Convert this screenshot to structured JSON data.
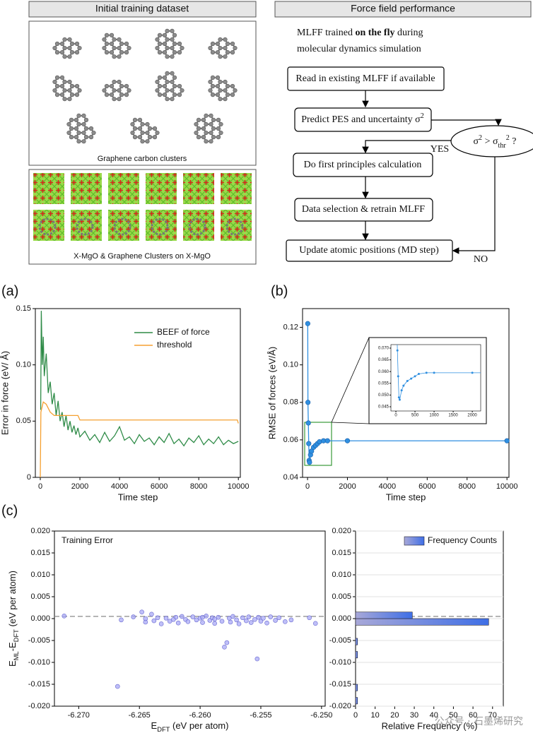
{
  "dataset": {
    "title": "Initial training dataset",
    "graphene_caption": "Graphene carbon clusters",
    "mgo_caption": "X-MgO & Graphene Clusters on X-MgO"
  },
  "flow": {
    "title": "Force field performance",
    "intro": [
      {
        "text": "MLFF trained "
      },
      {
        "text": "on the fly",
        "weight": "bold"
      },
      {
        "text": " during"
      }
    ],
    "intro2": "molecular dynamics simulation",
    "read": "Read in existing MLFF if available",
    "predict": [
      {
        "text": "Predict PES and uncertainty σ"
      },
      {
        "text": "2",
        "shift": "super"
      }
    ],
    "decision": [
      {
        "text": "σ"
      },
      {
        "text": "2",
        "shift": "super"
      },
      {
        "text": " > σ"
      },
      {
        "text": "thr",
        "shift": "sub"
      },
      {
        "text": "2",
        "shift": "super"
      },
      {
        "text": " ?"
      }
    ],
    "yes": "YES",
    "first_principles": "Do first principles calculation",
    "retrain": "Data selection & retrain MLFF",
    "update": "Update atomic positions (MD step)",
    "no": "NO"
  },
  "chart_data": [
    {
      "type": "line",
      "panel_label": "(a)",
      "xlabel": "Time step",
      "ylabel": "Error in force (eV/ Å)",
      "xlim": [
        -250,
        10100
      ],
      "ylim": [
        0,
        0.15
      ],
      "xticks": [
        0,
        2000,
        4000,
        6000,
        8000,
        10000
      ],
      "yticks": [
        0,
        0.05,
        {
          "value": 0.1,
          "label": "0.10"
        },
        0.15
      ],
      "legend": "upper right",
      "series": [
        {
          "name": "BEEF of force",
          "color": "#2e8b47",
          "x": [
            20,
            50,
            100,
            150,
            200,
            300,
            400,
            500,
            600,
            700,
            800,
            900,
            1000,
            1100,
            1200,
            1300,
            1400,
            1500,
            1600,
            1700,
            1800,
            1900,
            2000,
            2250,
            2500,
            2750,
            3000,
            3250,
            3500,
            3750,
            4000,
            4250,
            4500,
            4750,
            5000,
            5250,
            5500,
            5750,
            6000,
            6250,
            6500,
            6750,
            7000,
            7250,
            7500,
            7750,
            8000,
            8250,
            8500,
            8750,
            9000,
            9250,
            9500,
            9750,
            10000
          ],
          "values": [
            0.06,
            0.148,
            0.1,
            0.125,
            0.09,
            0.11,
            0.075,
            0.085,
            0.065,
            0.075,
            0.055,
            0.068,
            0.05,
            0.058,
            0.045,
            0.055,
            0.042,
            0.05,
            0.04,
            0.046,
            0.038,
            0.044,
            0.036,
            0.041,
            0.033,
            0.038,
            0.031,
            0.04,
            0.032,
            0.037,
            0.045,
            0.033,
            0.036,
            0.03,
            0.038,
            0.032,
            0.035,
            0.029,
            0.036,
            0.031,
            0.039,
            0.03,
            0.034,
            0.028,
            0.035,
            0.031,
            0.037,
            0.029,
            0.034,
            0.03,
            0.036,
            0.029,
            0.033,
            0.03,
            0.032
          ]
        },
        {
          "name": "threshold",
          "color": "#f5a030",
          "x": [
            0,
            30,
            150,
            300,
            500,
            700,
            1900,
            2000,
            9950,
            10000
          ],
          "values": [
            0,
            0.058,
            0.067,
            0.065,
            0.058,
            0.055,
            0.055,
            0.051,
            0.051,
            0.048
          ]
        }
      ]
    },
    {
      "type": "line",
      "markers": true,
      "panel_label": "(b)",
      "xlabel": "Time step",
      "ylabel": "RMSE of forces (eV/Å)",
      "xlim": [
        -250,
        10100
      ],
      "ylim": [
        0.04,
        0.13
      ],
      "xticks": [
        0,
        2000,
        4000,
        6000,
        8000,
        10000
      ],
      "yticks": [
        0.04,
        0.06,
        0.08,
        {
          "value": 0.1,
          "label": "0.10"
        },
        0.12
      ],
      "series": [
        {
          "color": "#2f8fe0",
          "x": [
            10,
            20,
            40,
            60,
            80,
            100,
            150,
            200,
            300,
            400,
            500,
            600,
            800,
            1000,
            2000,
            10000
          ],
          "values": [
            0.122,
            0.08,
            0.069,
            0.058,
            0.049,
            0.048,
            0.052,
            0.054,
            0.056,
            0.057,
            0.058,
            0.059,
            0.0595,
            0.0595,
            0.0595,
            0.0595
          ]
        }
      ],
      "inset": {
        "xlim": [
          -130,
          2220
        ],
        "ylim": [
          0.0432,
          0.0715
        ],
        "xticks": [
          0,
          500,
          1000,
          1500,
          2000
        ],
        "yticks": [
          0.045,
          {
            "value": 0.05,
            "label": "0.050"
          },
          0.055,
          {
            "value": 0.06,
            "label": "0.060"
          },
          0.065,
          {
            "value": 0.07,
            "label": "0.070"
          }
        ]
      }
    },
    {
      "type": "scatter",
      "panel_label": "(c)",
      "annotation": "Training Error",
      "xlabel": [
        {
          "text": "E"
        },
        {
          "text": "DFT",
          "shift": "sub"
        },
        {
          "text": " (eV per atom)"
        }
      ],
      "ylabel": [
        {
          "text": "E"
        },
        {
          "text": "ML",
          "shift": "sub"
        },
        {
          "text": "-E"
        },
        {
          "text": "DFT",
          "shift": "sub"
        },
        {
          "text": " (eV per atom)"
        }
      ],
      "xlim": [
        -6.272,
        -6.2497
      ],
      "ylim": [
        -0.02,
        0.02
      ],
      "xticks": [
        {
          "value": -6.27,
          "label": "-6.270"
        },
        -6.265,
        {
          "value": -6.26,
          "label": "-6.260"
        },
        -6.255,
        {
          "value": -6.25,
          "label": "-6.250"
        }
      ],
      "yticks": [
        {
          "value": 0.02,
          "label": "0.020"
        },
        0.015,
        {
          "value": 0.01,
          "label": "0.010"
        },
        0.005,
        {
          "value": 0,
          "label": "0.000"
        },
        -0.005,
        {
          "value": -0.01,
          "label": "-0.010"
        },
        -0.015,
        {
          "value": -0.02,
          "label": "-0.020"
        }
      ],
      "hline": 0.0005,
      "color": "#a9a9f5",
      "x": [
        -6.2712,
        -6.2668,
        -6.2665,
        -6.2655,
        -6.2648,
        -6.2645,
        -6.264,
        -6.2638,
        -6.2635,
        -6.2632,
        -6.2628,
        -6.2625,
        -6.262,
        -6.2618,
        -6.2615,
        -6.2612,
        -6.261,
        -6.2606,
        -6.2603,
        -6.26,
        -6.2598,
        -6.2595,
        -6.2592,
        -6.259,
        -6.2588,
        -6.2585,
        -6.2582,
        -6.258,
        -6.2578,
        -6.2576,
        -6.2575,
        -6.2573,
        -6.257,
        -6.2568,
        -6.2565,
        -6.2562,
        -6.256,
        -6.2558,
        -6.2555,
        -6.2553,
        -6.2552,
        -6.255,
        -6.2548,
        -6.2545,
        -6.2542,
        -6.2538,
        -6.2535,
        -6.253,
        -6.2525,
        -6.251,
        -6.2505,
        -6.2588,
        -6.2622,
        -6.2645,
        -6.2598
      ],
      "values": [
        0.0006,
        -0.0155,
        -0.0003,
        0.0004,
        0.0015,
        -0.0008,
        0.001,
        -0.0005,
        0.0002,
        -0.0012,
        0.0001,
        -0.0006,
        0.0003,
        -0.001,
        0.0005,
        -0.0002,
        -0.0007,
        0.0004,
        -0.0003,
        0.0001,
        -0.0009,
        0.0006,
        -0.0004,
        0.0002,
        -0.0011,
        0.0003,
        -0.0006,
        -0.0065,
        -0.0055,
        0.0001,
        -0.0008,
        0.0005,
        -0.0003,
        -0.0012,
        0.0002,
        -0.0005,
        0.0004,
        -0.0009,
        -0.0002,
        -0.0092,
        0.0003,
        -0.0006,
        0.0001,
        -0.001,
        0.0004,
        -0.0004,
        0.0002,
        -0.0007,
        -0.0003,
        0.0002,
        -0.0011,
        -0.0001,
        -0.0002,
        0,
        0.0003
      ]
    },
    {
      "type": "histogram",
      "orientation": "horizontal",
      "xlabel": "Relative Frequency (%)",
      "xlim": [
        0,
        75.5
      ],
      "ylim": [
        -0.02,
        0.02
      ],
      "xticks": [
        0,
        10,
        20,
        30,
        40,
        50,
        60,
        70
      ],
      "yticks": [
        {
          "value": 0.02,
          "label": "0.020"
        },
        0.015,
        {
          "value": 0.01,
          "label": "0.010"
        },
        0.005,
        {
          "value": 0,
          "label": "0.000"
        },
        -0.005,
        {
          "value": -0.01,
          "label": "-0.010"
        },
        -0.015,
        {
          "value": -0.02,
          "label": "-0.020"
        }
      ],
      "grid": true,
      "hline": 0.0005,
      "legend": "upper right",
      "bins": [
        -0.0195,
        -0.018,
        -0.0165,
        -0.015,
        -0.0135,
        -0.012,
        -0.0105,
        -0.009,
        -0.0075,
        -0.006,
        -0.0045,
        -0.003,
        -0.0015,
        0,
        0.0015,
        0.003
      ],
      "series": [
        {
          "name": "Frequency Counts",
          "color": "#3f6fe6",
          "values": [
            1,
            0,
            1,
            0,
            0,
            0,
            0,
            1,
            0,
            1,
            0,
            0,
            68,
            29,
            0
          ]
        }
      ]
    }
  ],
  "watermark": "公众号 · 石墨烯研究"
}
